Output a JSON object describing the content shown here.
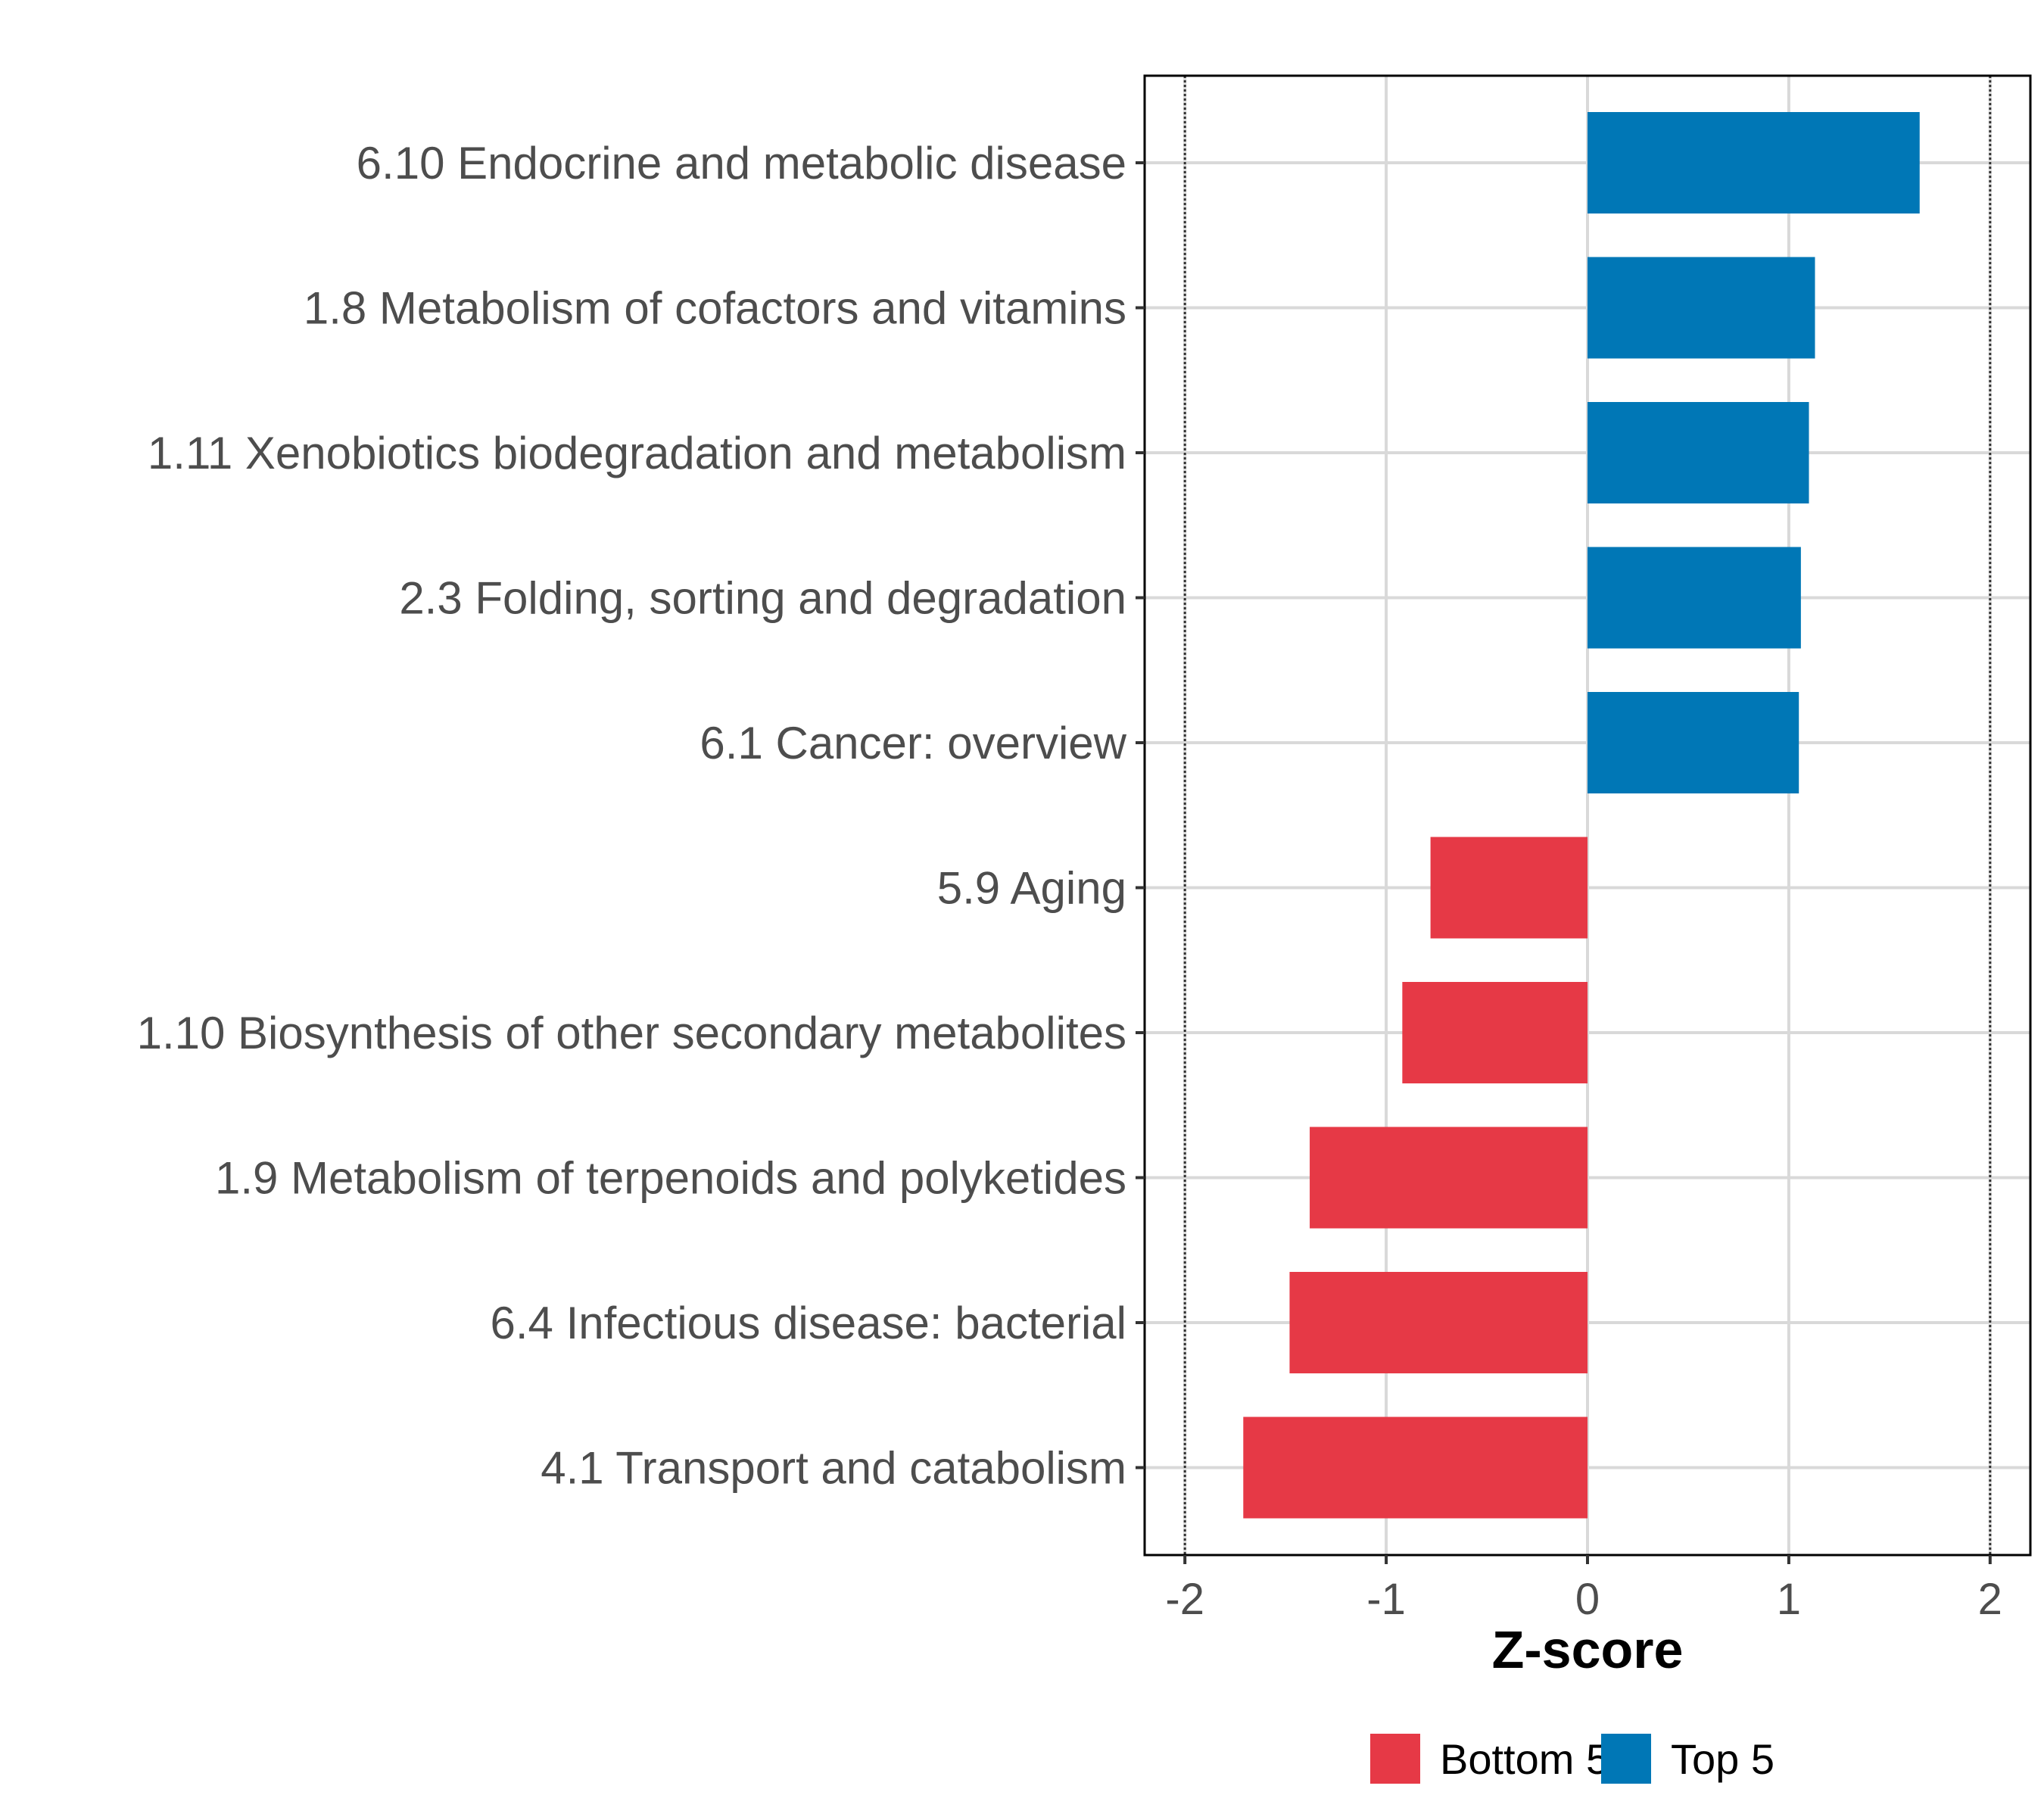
{
  "chart_data": {
    "type": "bar",
    "orientation": "horizontal",
    "categories": [
      "6.10 Endocrine and metabolic disease",
      "1.8 Metabolism of cofactors and vitamins",
      "1.11 Xenobiotics biodegradation and metabolism",
      "2.3 Folding, sorting and degradation",
      "6.1 Cancer: overview",
      "5.9 Aging",
      "1.10 Biosynthesis of other secondary metabolites",
      "1.9 Metabolism of terpenoids and polyketides",
      "6.4 Infectious disease: bacterial",
      "4.1 Transport and catabolism"
    ],
    "values": [
      1.65,
      1.13,
      1.1,
      1.06,
      1.05,
      -0.78,
      -0.92,
      -1.38,
      -1.48,
      -1.71
    ],
    "groups": [
      "Top 5",
      "Top 5",
      "Top 5",
      "Top 5",
      "Top 5",
      "Bottom 5",
      "Bottom 5",
      "Bottom 5",
      "Bottom 5",
      "Bottom 5"
    ],
    "xlabel": "Z-score",
    "ylabel": "",
    "xlim": [
      -2.2,
      2.2
    ],
    "xticks": [
      -2,
      -1,
      0,
      1,
      2
    ],
    "xtick_labels": [
      "-2",
      "-1",
      "0",
      "1",
      "2"
    ],
    "reference_lines": [
      -2,
      2
    ],
    "grid": true,
    "legend": {
      "position": "bottom",
      "entries": [
        {
          "label": "Bottom 5",
          "color": "#e63946"
        },
        {
          "label": "Top 5",
          "color": "#0077b6"
        }
      ]
    }
  }
}
